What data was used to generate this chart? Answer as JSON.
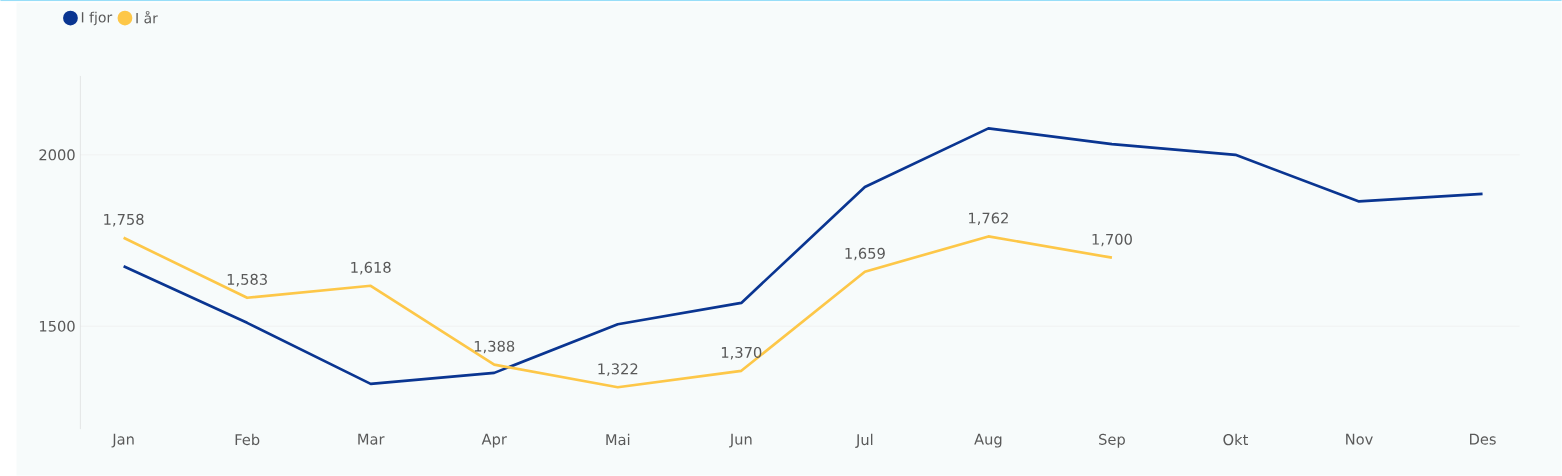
{
  "chart_data": {
    "type": "line",
    "categories": [
      "Jan",
      "Feb",
      "Mar",
      "Apr",
      "Mai",
      "Jun",
      "Jul",
      "Aug",
      "Sep",
      "Okt",
      "Nov",
      "Des"
    ],
    "series": [
      {
        "name": "I fjor",
        "color": "#0a3591",
        "values": [
          1675,
          1510,
          1332,
          1364,
          1506,
          1568,
          1906,
          2077,
          2031,
          2000,
          1864,
          1886
        ]
      },
      {
        "name": "I år",
        "color": "#fdc748",
        "values": [
          1758,
          1583,
          1618,
          1388,
          1322,
          1370,
          1659,
          1762,
          1700,
          null,
          null,
          null
        ],
        "value_labels": [
          "1,758",
          "1,583",
          "1,618",
          "1,388",
          "1,322",
          "1,370",
          "1,659",
          "1,762",
          "1,700",
          null,
          null,
          null
        ]
      }
    ],
    "ylim": [
      1200,
      2230
    ],
    "yticks": [
      1500,
      2000
    ],
    "grid": "y",
    "legend": "top left",
    "marker": "none",
    "line_style": "solid"
  }
}
